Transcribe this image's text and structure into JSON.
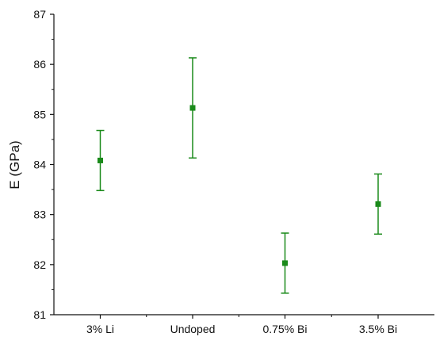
{
  "chart_data": {
    "type": "scatter",
    "title": "",
    "xlabel": "",
    "ylabel": "E (GPa)",
    "categories": [
      "3% Li",
      "Undoped",
      "0.75% Bi",
      "3.5% Bi"
    ],
    "series": [
      {
        "values": [
          84.08,
          85.13,
          82.03,
          83.21
        ],
        "error_low": [
          83.48,
          84.13,
          81.43,
          82.61
        ],
        "error_high": [
          84.68,
          86.13,
          82.63,
          83.81
        ]
      }
    ],
    "ylim": [
      81,
      87
    ],
    "yticks": [
      81,
      82,
      83,
      84,
      85,
      86,
      87
    ],
    "ytick_labels": [
      "81",
      "82",
      "83",
      "84",
      "85",
      "86",
      "87"
    ],
    "grid": false,
    "legend": "none",
    "colors": {
      "series": "#1a8a1a",
      "axis": "#111111"
    }
  }
}
